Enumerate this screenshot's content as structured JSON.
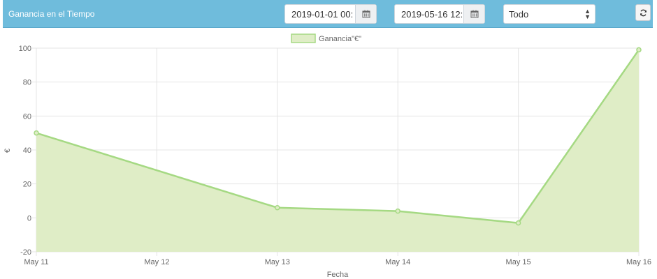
{
  "header": {
    "title": "Ganancia en el Tiempo",
    "date_from": "2019-01-01 00:",
    "date_to": "2019-05-16 12:",
    "filter_selected": "Todo"
  },
  "icons": {
    "calendar": "calendar-icon",
    "refresh": "refresh-icon",
    "select_arrows": "select-arrows-icon"
  },
  "colors": {
    "header_bg": "#6fbcdc",
    "series_line": "#a5d983",
    "series_fill": "#dfedc6"
  },
  "chart_data": {
    "type": "area",
    "categories": [
      "May 11",
      "May 12",
      "May 13",
      "May 14",
      "May 15",
      "May 16"
    ],
    "x": [
      "2019-05-11",
      "2019-05-13",
      "2019-05-14",
      "2019-05-15",
      "2019-05-16"
    ],
    "series": [
      {
        "name": "Ganancia\"€\"",
        "values": [
          50,
          6,
          4,
          -3,
          99
        ]
      }
    ],
    "xlabel": "Fecha",
    "ylabel": "€",
    "ylim": [
      -20,
      100
    ],
    "yticks": [
      "100",
      "80",
      "60",
      "40",
      "20",
      "0",
      "-20"
    ],
    "grid": true,
    "legend": "top-center"
  }
}
